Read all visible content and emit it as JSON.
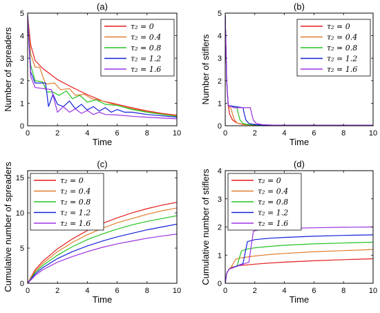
{
  "legend_labels": [
    "τ₂ = 0",
    "τ₂ = 0.4",
    "τ₂ = 0.8",
    "τ₂ = 1.2",
    "τ₂ = 1.6"
  ],
  "series_colors": [
    "#e41a1c",
    "#e07b2a",
    "#22c322",
    "#1320d8",
    "#9b30e0"
  ],
  "chart_data": [
    {
      "type": "line",
      "title": "(a)",
      "xlabel": "Time",
      "ylabel": "Number of spreaders",
      "xlim": [
        0,
        10
      ],
      "ylim": [
        0,
        5
      ],
      "xticks": [
        0,
        2,
        4,
        6,
        8,
        10
      ],
      "yticks": [
        0,
        1,
        2,
        3,
        4,
        5
      ],
      "legend": "top-right",
      "series": [
        {
          "name": "τ₂ = 0",
          "x": [
            0,
            0.2,
            0.5,
            1,
            1.5,
            2,
            3,
            4,
            5,
            6,
            7,
            8,
            9,
            10
          ],
          "y": [
            4.9,
            3.6,
            2.9,
            2.55,
            2.3,
            2.05,
            1.7,
            1.38,
            1.1,
            0.95,
            0.8,
            0.66,
            0.55,
            0.47
          ]
        },
        {
          "name": "τ₂ = 0.4",
          "x": [
            0,
            0.2,
            0.5,
            0.8,
            1.2,
            1.8,
            2.2,
            2.8,
            3.2,
            3.8,
            4.3,
            5,
            6,
            7,
            8,
            9,
            10
          ],
          "y": [
            4.9,
            3.2,
            2.6,
            2.6,
            1.85,
            1.9,
            1.6,
            1.65,
            1.35,
            1.4,
            1.2,
            1.1,
            0.9,
            0.76,
            0.62,
            0.52,
            0.44
          ]
        },
        {
          "name": "τ₂ = 0.8",
          "x": [
            0,
            0.2,
            0.5,
            1,
            1.3,
            1.7,
            2.1,
            2.6,
            3.0,
            3.5,
            4.0,
            4.6,
            5.2,
            6,
            7,
            8,
            9,
            10
          ],
          "y": [
            4.9,
            2.7,
            2.0,
            1.95,
            1.5,
            1.5,
            1.35,
            1.55,
            1.2,
            1.35,
            1.05,
            1.15,
            0.95,
            0.9,
            0.72,
            0.6,
            0.5,
            0.42
          ]
        },
        {
          "name": "τ₂ = 1.2",
          "x": [
            0,
            0.2,
            0.5,
            1.2,
            1.4,
            1.7,
            2.0,
            2.4,
            2.8,
            3.2,
            3.6,
            4.0,
            4.4,
            4.8,
            5.2,
            5.6,
            6.0,
            6.5,
            7,
            8,
            9,
            10
          ],
          "y": [
            4.9,
            2.4,
            1.9,
            1.9,
            0.85,
            1.4,
            0.95,
            0.85,
            1.1,
            0.75,
            0.95,
            0.7,
            0.85,
            0.65,
            0.8,
            0.6,
            0.72,
            0.6,
            0.6,
            0.5,
            0.44,
            0.38
          ]
        },
        {
          "name": "τ₂ = 1.6",
          "x": [
            0,
            0.2,
            0.5,
            1.6,
            2.0,
            2.4,
            2.8,
            3.2,
            3.6,
            4.0,
            4.4,
            4.8,
            5.2,
            6,
            7,
            8,
            9,
            10
          ],
          "y": [
            4.9,
            2.2,
            1.7,
            1.6,
            0.6,
            0.85,
            0.6,
            0.75,
            0.55,
            0.68,
            0.5,
            0.6,
            0.5,
            0.48,
            0.42,
            0.38,
            0.34,
            0.31
          ]
        }
      ]
    },
    {
      "type": "line",
      "title": "(b)",
      "xlabel": "Time",
      "ylabel": "Number of stiflers",
      "xlim": [
        0,
        10
      ],
      "ylim": [
        0,
        5
      ],
      "xticks": [
        0,
        2,
        4,
        6,
        8,
        10
      ],
      "yticks": [
        0,
        1,
        2,
        3,
        4,
        5
      ],
      "legend": "top-right",
      "series": [
        {
          "name": "τ₂ = 0",
          "x": [
            0,
            0.1,
            0.2,
            0.3,
            0.5,
            0.8,
            1.2,
            2,
            3,
            4,
            6,
            10
          ],
          "y": [
            4.9,
            2.0,
            0.9,
            0.5,
            0.25,
            0.12,
            0.06,
            0.03,
            0.02,
            0.02,
            0.02,
            0.02
          ]
        },
        {
          "name": "τ₂ = 0.4",
          "x": [
            0,
            0.1,
            0.2,
            0.4,
            0.5,
            0.6,
            0.8,
            1.2,
            2,
            3,
            4,
            10
          ],
          "y": [
            4.9,
            2.0,
            0.9,
            0.75,
            0.5,
            0.3,
            0.12,
            0.05,
            0.03,
            0.02,
            0.02,
            0.02
          ]
        },
        {
          "name": "τ₂ = 0.8",
          "x": [
            0,
            0.1,
            0.2,
            0.8,
            0.9,
            1.0,
            1.2,
            1.6,
            2.4,
            3,
            4,
            10
          ],
          "y": [
            4.9,
            2.0,
            0.9,
            0.78,
            0.5,
            0.25,
            0.1,
            0.05,
            0.03,
            0.02,
            0.02,
            0.02
          ]
        },
        {
          "name": "τ₂ = 1.2",
          "x": [
            0,
            0.1,
            0.2,
            1.2,
            1.3,
            1.4,
            1.6,
            2.0,
            2.8,
            4,
            10
          ],
          "y": [
            4.9,
            2.0,
            0.9,
            0.8,
            0.5,
            0.25,
            0.1,
            0.05,
            0.03,
            0.02,
            0.02
          ]
        },
        {
          "name": "τ₂ = 1.6",
          "x": [
            0,
            0.1,
            0.2,
            0.6,
            1.7,
            1.8,
            1.9,
            2.1,
            2.5,
            3.2,
            4,
            10
          ],
          "y": [
            4.9,
            2.0,
            0.9,
            0.8,
            0.8,
            0.5,
            0.25,
            0.1,
            0.05,
            0.03,
            0.02,
            0.02
          ]
        }
      ]
    },
    {
      "type": "line",
      "title": "(c)",
      "xlabel": "Time",
      "ylabel": "Cumulative number of spreaders",
      "xlim": [
        0,
        10
      ],
      "ylim": [
        0,
        16
      ],
      "xticks": [
        0,
        2,
        4,
        6,
        8,
        10
      ],
      "yticks": [
        0,
        5,
        10,
        15
      ],
      "legend": "top-left",
      "series": [
        {
          "name": "τ₂ = 0",
          "x": [
            0,
            0.5,
            1,
            2,
            3,
            4,
            5,
            6,
            7,
            8,
            9,
            10
          ],
          "y": [
            0,
            1.9,
            3.1,
            4.9,
            6.3,
            7.5,
            8.5,
            9.3,
            10.0,
            10.6,
            11.1,
            11.5
          ]
        },
        {
          "name": "τ₂ = 0.4",
          "x": [
            0,
            0.5,
            1,
            2,
            3,
            4,
            5,
            6,
            7,
            8,
            9,
            10
          ],
          "y": [
            0,
            1.7,
            2.8,
            4.5,
            5.8,
            6.9,
            7.8,
            8.6,
            9.2,
            9.8,
            10.3,
            10.7
          ]
        },
        {
          "name": "τ₂ = 0.8",
          "x": [
            0,
            0.5,
            1,
            2,
            3,
            4,
            5,
            6,
            7,
            8,
            9,
            10
          ],
          "y": [
            0,
            1.5,
            2.5,
            4.0,
            5.2,
            6.2,
            7.0,
            7.7,
            8.3,
            8.8,
            9.2,
            9.6
          ]
        },
        {
          "name": "τ₂ = 1.2",
          "x": [
            0,
            0.5,
            1,
            2,
            3,
            4,
            5,
            6,
            7,
            8,
            9,
            10
          ],
          "y": [
            0,
            1.3,
            2.2,
            3.5,
            4.5,
            5.3,
            6.0,
            6.6,
            7.1,
            7.6,
            8.0,
            8.4
          ]
        },
        {
          "name": "τ₂ = 1.6",
          "x": [
            0,
            0.5,
            1,
            2,
            3,
            4,
            5,
            6,
            7,
            8,
            9,
            10
          ],
          "y": [
            0,
            1.1,
            1.9,
            3.0,
            3.8,
            4.5,
            5.1,
            5.6,
            6.0,
            6.4,
            6.7,
            7.0
          ]
        }
      ]
    },
    {
      "type": "line",
      "title": "(d)",
      "xlabel": "Time",
      "ylabel": "Cumulative number of stiflers",
      "xlim": [
        0,
        10
      ],
      "ylim": [
        0,
        4
      ],
      "xticks": [
        0,
        2,
        4,
        6,
        8,
        10
      ],
      "yticks": [
        0,
        1,
        2,
        3,
        4
      ],
      "legend": "top-left",
      "series": [
        {
          "name": "τ₂ = 0",
          "x": [
            0,
            0.1,
            0.25,
            0.5,
            1,
            2,
            3,
            4,
            6,
            8,
            10
          ],
          "y": [
            0,
            0.35,
            0.5,
            0.58,
            0.63,
            0.68,
            0.72,
            0.75,
            0.8,
            0.84,
            0.87
          ]
        },
        {
          "name": "τ₂ = 0.4",
          "x": [
            0,
            0.1,
            0.25,
            0.4,
            0.7,
            1,
            2,
            3,
            4,
            6,
            8,
            10
          ],
          "y": [
            0,
            0.35,
            0.5,
            0.58,
            0.85,
            0.9,
            0.97,
            1.02,
            1.06,
            1.12,
            1.16,
            1.2
          ]
        },
        {
          "name": "τ₂ = 0.8",
          "x": [
            0,
            0.1,
            0.25,
            0.8,
            1.1,
            1.5,
            2,
            3,
            4,
            6,
            8,
            10
          ],
          "y": [
            0,
            0.35,
            0.5,
            0.62,
            1.15,
            1.22,
            1.26,
            1.31,
            1.35,
            1.4,
            1.43,
            1.46
          ]
        },
        {
          "name": "τ₂ = 1.2",
          "x": [
            0,
            0.1,
            0.25,
            1.2,
            1.5,
            2,
            3,
            4,
            6,
            8,
            10
          ],
          "y": [
            0,
            0.35,
            0.5,
            0.7,
            1.48,
            1.55,
            1.6,
            1.63,
            1.67,
            1.7,
            1.72
          ]
        },
        {
          "name": "τ₂ = 1.6",
          "x": [
            0,
            0.1,
            0.25,
            1.6,
            1.9,
            2.3,
            3,
            4,
            6,
            8,
            10
          ],
          "y": [
            0,
            0.35,
            0.5,
            0.75,
            1.85,
            1.9,
            1.93,
            1.95,
            1.97,
            1.99,
            2.0
          ]
        }
      ]
    }
  ]
}
